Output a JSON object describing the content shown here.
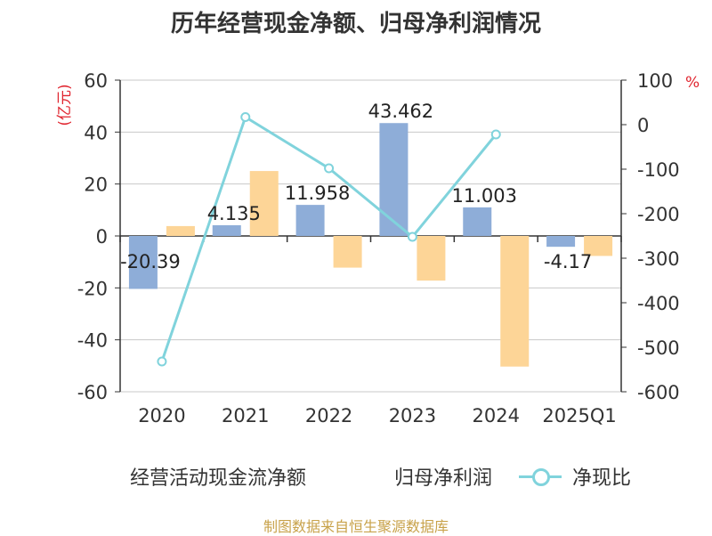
{
  "title": "历年经营现金净额、归母净利润情况",
  "source_text": "制图数据来自恒生聚源数据库",
  "colors": {
    "bar1": "#8eadd8",
    "bar2": "#fdd597",
    "line": "#80d3dc",
    "unit": "#e0242e",
    "axis": "#333333",
    "grid": "#c8c8c8"
  },
  "chart_data": {
    "type": "bar",
    "categories": [
      "2020",
      "2021",
      "2022",
      "2023",
      "2024",
      "2025Q1"
    ],
    "y_left": {
      "label": "(亿元)",
      "ylim": [
        -60,
        60
      ],
      "ticks": [
        "60",
        "40",
        "20",
        "0",
        "-20",
        "-40",
        "-60"
      ]
    },
    "y_right": {
      "label": "%",
      "ylim": [
        -600,
        100
      ],
      "ticks": [
        "100",
        "0",
        "-100",
        "-200",
        "-300",
        "-400",
        "-500",
        "-600"
      ]
    },
    "grid": true,
    "legend_position": "bottom",
    "series": [
      {
        "name": "经营活动现金流净额",
        "type": "bar",
        "axis": "left",
        "values": [
          -20.39,
          4.135,
          11.958,
          43.462,
          11.003,
          -4.17
        ],
        "labels": [
          "-20.39",
          "4.135",
          "11.958",
          "43.462",
          "11.003",
          "-4.17"
        ]
      },
      {
        "name": "归母净利润",
        "type": "bar",
        "axis": "left",
        "values": [
          3.8,
          25.0,
          -12.2,
          -17.2,
          -50.3,
          -7.7
        ]
      },
      {
        "name": "净现比",
        "type": "line",
        "axis": "right",
        "values": [
          -532,
          17,
          -98,
          -252,
          -22,
          null
        ]
      }
    ]
  }
}
